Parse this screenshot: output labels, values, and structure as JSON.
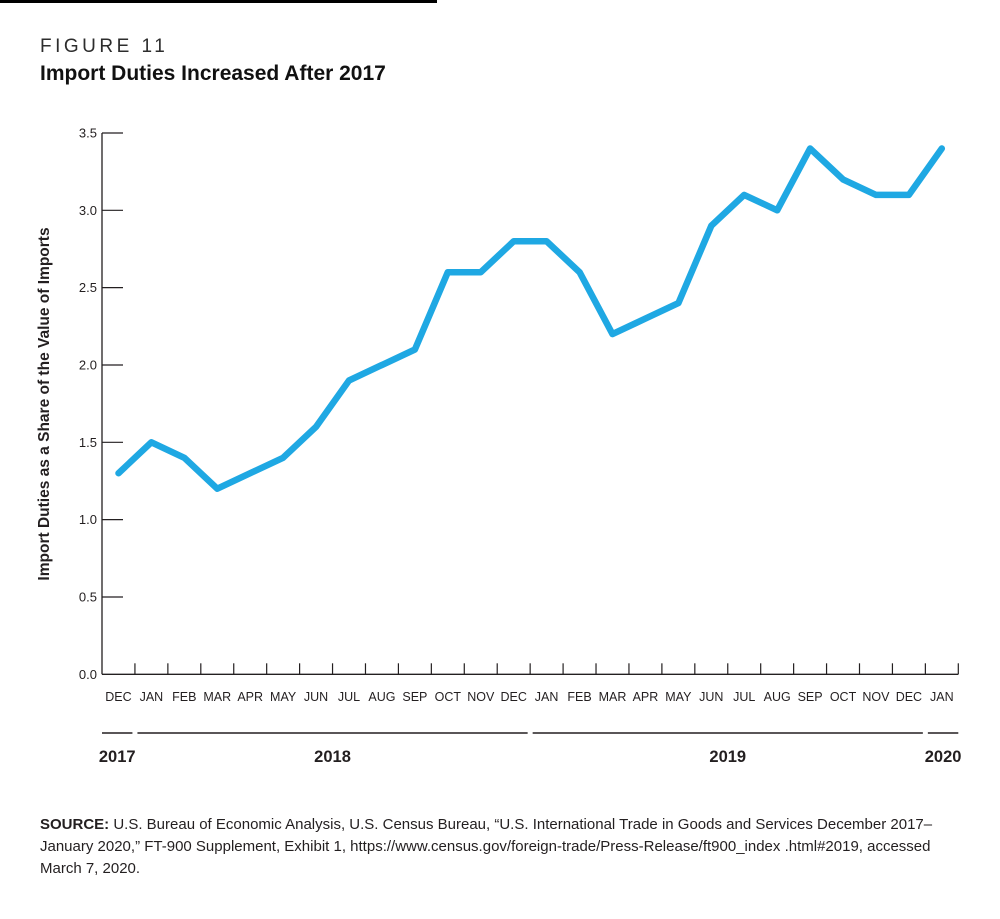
{
  "header": {
    "figure_label": "FIGURE 11",
    "title": "Import Duties Increased After 2017"
  },
  "chart_data": {
    "type": "line",
    "title": "Import Duties Increased After 2017",
    "xlabel": "",
    "ylabel": "Import Duties as a Share of the Value of Imports",
    "ylim": [
      0.0,
      3.5
    ],
    "ytick_labels": [
      "0.0",
      "0.5",
      "1.0",
      "1.5",
      "2.0",
      "2.5",
      "3.0",
      "3.5"
    ],
    "grid": "off",
    "legend": "none",
    "line_color": "#1FA8E3",
    "axis_color": "#231f20",
    "categories": [
      "DEC",
      "JAN",
      "FEB",
      "MAR",
      "APR",
      "MAY",
      "JUN",
      "JUL",
      "AUG",
      "SEP",
      "OCT",
      "NOV",
      "DEC",
      "JAN",
      "FEB",
      "MAR",
      "APR",
      "MAY",
      "JUN",
      "JUL",
      "AUG",
      "SEP",
      "OCT",
      "NOV",
      "DEC",
      "JAN"
    ],
    "values": [
      1.3,
      1.5,
      1.4,
      1.2,
      1.3,
      1.4,
      1.6,
      1.9,
      2.0,
      2.1,
      2.6,
      2.6,
      2.8,
      2.8,
      2.6,
      2.2,
      2.3,
      2.4,
      2.9,
      3.1,
      3.0,
      3.4,
      3.2,
      3.1,
      3.1,
      3.4
    ],
    "year_groups": [
      {
        "label": "2017",
        "start": 0,
        "count": 1
      },
      {
        "label": "2018",
        "start": 1,
        "count": 12
      },
      {
        "label": "2019",
        "start": 13,
        "count": 12
      },
      {
        "label": "2020",
        "start": 25,
        "count": 1
      }
    ]
  },
  "source": {
    "label": "SOURCE:",
    "text": " U.S. Bureau of Economic Analysis, U.S. Census Bureau, “U.S. International Trade in Goods and Services December 2017–January 2020,” FT-900 Supplement, Exhibit 1, https://www.census.gov/foreign-trade/Press-Release/ft900_index .html#2019, accessed March 7, 2020."
  }
}
